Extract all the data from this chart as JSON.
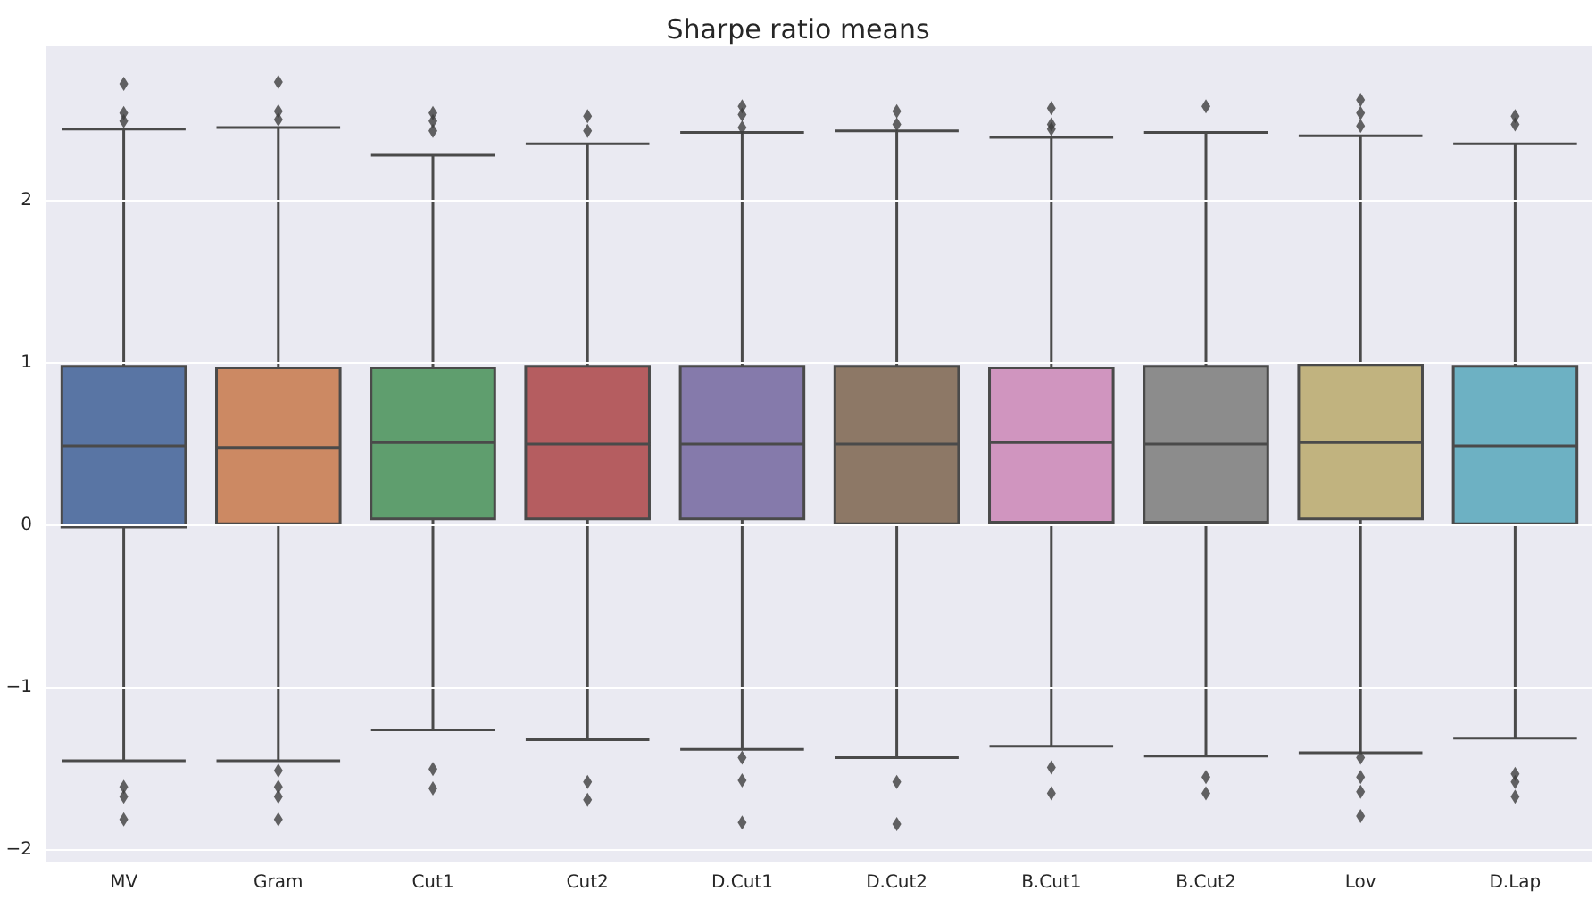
{
  "chart_data": {
    "type": "box",
    "title": "Sharpe ratio means",
    "categories": [
      "MV",
      "Gram",
      "Cut1",
      "Cut2",
      "D.Cut1",
      "D.Cut2",
      "B.Cut1",
      "B.Cut2",
      "Lov",
      "D.Lap"
    ],
    "colors": [
      "#5975a4",
      "#cc8963",
      "#5f9e6e",
      "#b55d60",
      "#857aab",
      "#8d7866",
      "#d095bf",
      "#8c8c8c",
      "#c1b37f",
      "#6db1c3"
    ],
    "boxes": [
      {
        "low": -1.45,
        "q1": -0.01,
        "median": 0.49,
        "q3": 0.98,
        "high": 2.44,
        "outliers": [
          2.72,
          2.54,
          2.49,
          -1.61,
          -1.67,
          -1.81
        ]
      },
      {
        "low": -1.45,
        "q1": 0.01,
        "median": 0.48,
        "q3": 0.97,
        "high": 2.45,
        "outliers": [
          2.73,
          2.55,
          2.5,
          -1.51,
          -1.61,
          -1.67,
          -1.81
        ]
      },
      {
        "low": -1.26,
        "q1": 0.04,
        "median": 0.51,
        "q3": 0.97,
        "high": 2.28,
        "outliers": [
          2.54,
          2.49,
          2.43,
          -1.5,
          -1.62
        ]
      },
      {
        "low": -1.32,
        "q1": 0.04,
        "median": 0.5,
        "q3": 0.98,
        "high": 2.35,
        "outliers": [
          2.52,
          2.43,
          -1.58,
          -1.69
        ]
      },
      {
        "low": -1.38,
        "q1": 0.04,
        "median": 0.5,
        "q3": 0.98,
        "high": 2.42,
        "outliers": [
          2.58,
          2.53,
          2.45,
          -1.43,
          -1.57,
          -1.83
        ]
      },
      {
        "low": -1.43,
        "q1": 0.01,
        "median": 0.5,
        "q3": 0.98,
        "high": 2.43,
        "outliers": [
          2.55,
          2.47,
          -1.58,
          -1.84
        ]
      },
      {
        "low": -1.36,
        "q1": 0.02,
        "median": 0.51,
        "q3": 0.97,
        "high": 2.39,
        "outliers": [
          2.57,
          2.47,
          2.44,
          -1.49,
          -1.65
        ]
      },
      {
        "low": -1.42,
        "q1": 0.02,
        "median": 0.5,
        "q3": 0.98,
        "high": 2.42,
        "outliers": [
          2.58,
          -1.55,
          -1.65
        ]
      },
      {
        "low": -1.4,
        "q1": 0.04,
        "median": 0.51,
        "q3": 0.99,
        "high": 2.4,
        "outliers": [
          2.62,
          2.54,
          2.46,
          -1.43,
          -1.55,
          -1.64,
          -1.79
        ]
      },
      {
        "low": -1.31,
        "q1": 0.01,
        "median": 0.49,
        "q3": 0.98,
        "high": 2.35,
        "outliers": [
          2.52,
          2.47,
          -1.53,
          -1.58,
          -1.67
        ]
      }
    ],
    "ylim": [
      -2.07,
      2.95
    ],
    "yticks": [
      {
        "value": -2,
        "label": "−2"
      },
      {
        "value": -1,
        "label": "−1"
      },
      0,
      1,
      2
    ],
    "grid": "y"
  }
}
